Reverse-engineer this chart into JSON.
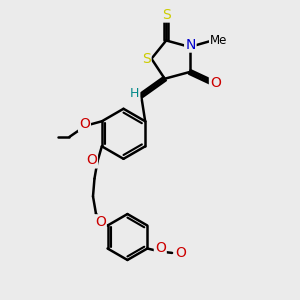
{
  "bg_color": "#ebebeb",
  "bond_color": "#000000",
  "bond_width": 1.8,
  "atom_colors": {
    "S": "#cccc00",
    "N": "#0000cc",
    "O": "#cc0000",
    "H": "#008888"
  },
  "font_size": 8.5,
  "fig_size": [
    3.0,
    3.0
  ],
  "dpi": 100
}
